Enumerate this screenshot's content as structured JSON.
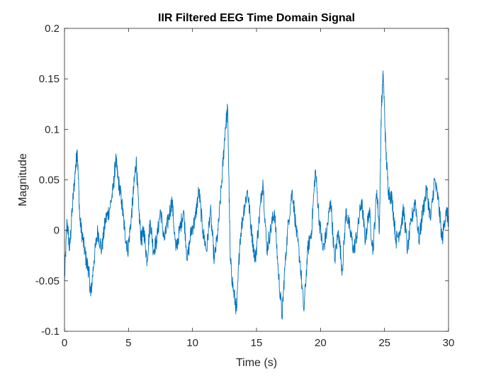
{
  "chart_data": {
    "type": "line",
    "title": "IIR Filtered EEG Time Domain Signal",
    "xlabel": "Time (s)",
    "ylabel": "Magnitude",
    "xlim": [
      0,
      30
    ],
    "ylim": [
      -0.1,
      0.2
    ],
    "grid": false,
    "legend": "none",
    "x_ticks": [
      0,
      5,
      10,
      15,
      20,
      25,
      30
    ],
    "x_tick_labels": [
      "0",
      "5",
      "10",
      "15",
      "20",
      "25",
      "30"
    ],
    "y_ticks": [
      -0.1,
      -0.05,
      0,
      0.05,
      0.1,
      0.15,
      0.2
    ],
    "y_tick_labels": [
      "-0.1",
      "-0.05",
      "0",
      "0.05",
      "0.1",
      "0.15",
      "0.2"
    ],
    "series": [
      {
        "color": "#0072BD",
        "x": [
          0,
          0.2,
          0.4,
          0.6,
          0.85,
          1.0,
          1.2,
          1.45,
          1.7,
          1.9,
          2.05,
          2.3,
          2.6,
          2.9,
          3.2,
          3.5,
          3.8,
          4.0,
          4.2,
          4.45,
          4.7,
          4.95,
          5.2,
          5.4,
          5.6,
          5.8,
          6.0,
          6.2,
          6.45,
          6.7,
          6.95,
          7.2,
          7.5,
          7.8,
          8.1,
          8.4,
          8.7,
          9.0,
          9.3,
          9.6,
          9.9,
          10.2,
          10.5,
          10.8,
          11.1,
          11.4,
          11.7,
          12.0,
          12.3,
          12.55,
          12.75,
          12.95,
          13.2,
          13.45,
          13.7,
          14.0,
          14.3,
          14.6,
          14.9,
          15.2,
          15.5,
          15.8,
          16.1,
          16.4,
          16.7,
          17.0,
          17.2,
          17.5,
          17.8,
          18.1,
          18.4,
          18.7,
          19.0,
          19.3,
          19.6,
          19.9,
          20.2,
          20.5,
          20.8,
          21.1,
          21.4,
          21.7,
          22.0,
          22.3,
          22.6,
          22.9,
          23.2,
          23.5,
          23.8,
          24.1,
          24.4,
          24.6,
          24.75,
          24.9,
          25.1,
          25.3,
          25.6,
          25.9,
          26.2,
          26.5,
          26.8,
          27.1,
          27.4,
          27.7,
          28.0,
          28.3,
          28.6,
          28.9,
          29.2,
          29.5,
          29.8,
          30.0
        ],
        "y": [
          -0.05,
          0.01,
          -0.02,
          0.02,
          0.06,
          0.08,
          0.01,
          -0.01,
          -0.03,
          -0.04,
          -0.065,
          -0.03,
          0.0,
          -0.02,
          0.01,
          0.02,
          0.04,
          0.07,
          0.05,
          0.03,
          0.0,
          -0.02,
          0.01,
          0.04,
          0.07,
          0.02,
          -0.01,
          0.0,
          -0.03,
          0.01,
          -0.02,
          -0.01,
          0.02,
          -0.01,
          0.01,
          0.03,
          -0.02,
          0.0,
          0.02,
          -0.03,
          0.0,
          0.01,
          0.04,
          0.0,
          -0.02,
          0.02,
          -0.03,
          0.0,
          0.05,
          0.1,
          0.12,
          -0.03,
          -0.06,
          -0.08,
          -0.01,
          0.02,
          0.04,
          0.0,
          -0.03,
          0.01,
          0.05,
          -0.02,
          0.0,
          0.02,
          -0.04,
          -0.085,
          -0.04,
          0.01,
          0.04,
          0.0,
          -0.03,
          -0.08,
          -0.02,
          0.0,
          0.06,
          0.01,
          -0.02,
          0.0,
          0.03,
          -0.03,
          0.0,
          -0.04,
          0.02,
          0.0,
          -0.02,
          0.0,
          0.03,
          -0.01,
          0.02,
          -0.02,
          0.04,
          0.0,
          0.12,
          0.155,
          0.08,
          0.04,
          0.03,
          -0.01,
          0.0,
          0.02,
          -0.02,
          0.01,
          0.03,
          -0.01,
          0.02,
          0.04,
          0.01,
          0.05,
          0.03,
          -0.01,
          0.02,
          0.01
        ]
      }
    ]
  }
}
